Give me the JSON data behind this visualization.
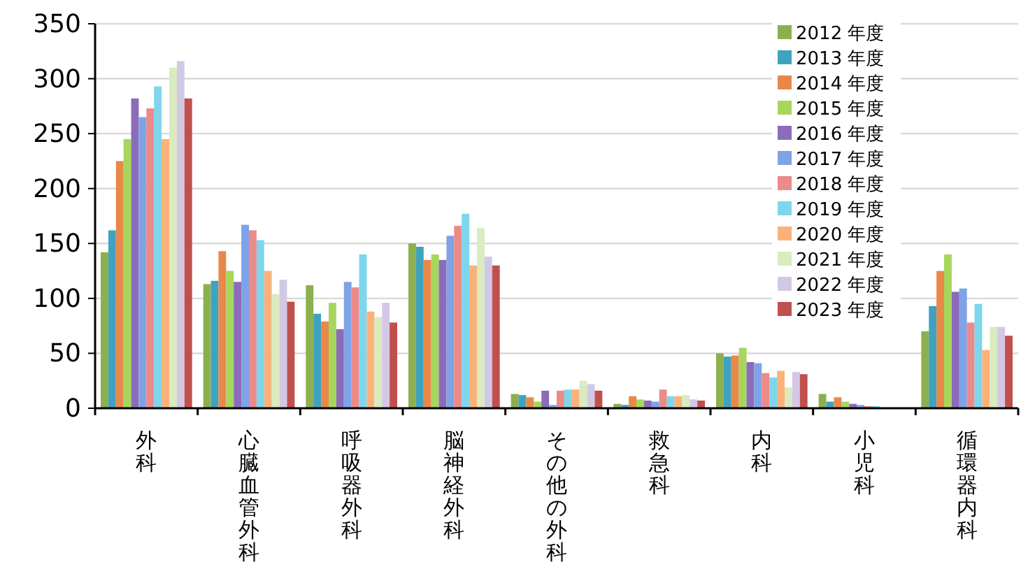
{
  "chart_data": {
    "type": "bar",
    "categories": [
      "外科",
      "心臓血管外科",
      "呼吸器外科",
      "脳神経外科",
      "その他の外科",
      "救急科",
      "内科",
      "小児科",
      "循環器内科"
    ],
    "series": [
      {
        "name": "2012 年度",
        "color": "#8db04f",
        "values": [
          142,
          113,
          112,
          150,
          13,
          4,
          50,
          13,
          70
        ]
      },
      {
        "name": "2013 年度",
        "color": "#3fa3bf",
        "values": [
          162,
          116,
          86,
          147,
          12,
          3,
          47,
          6,
          93
        ]
      },
      {
        "name": "2014 年度",
        "color": "#e8894a",
        "values": [
          225,
          143,
          79,
          135,
          10,
          11,
          48,
          10,
          125
        ]
      },
      {
        "name": "2015 年度",
        "color": "#a7d65c",
        "values": [
          245,
          125,
          96,
          140,
          6,
          8,
          55,
          6,
          140
        ]
      },
      {
        "name": "2016 年度",
        "color": "#8a6cba",
        "values": [
          282,
          115,
          72,
          135,
          16,
          7,
          42,
          4,
          106
        ]
      },
      {
        "name": "2017 年度",
        "color": "#7fa3e6",
        "values": [
          265,
          167,
          115,
          157,
          3,
          6,
          41,
          3,
          109
        ]
      },
      {
        "name": "2018 年度",
        "color": "#ec8a8a",
        "values": [
          273,
          162,
          110,
          166,
          16,
          17,
          32,
          2,
          78
        ]
      },
      {
        "name": "2019 年度",
        "color": "#7dd6ec",
        "values": [
          293,
          153,
          140,
          177,
          17,
          11,
          28,
          2,
          95
        ]
      },
      {
        "name": "2020 年度",
        "color": "#fbb27a",
        "values": [
          245,
          125,
          88,
          130,
          17,
          11,
          34,
          null,
          53
        ]
      },
      {
        "name": "2021 年度",
        "color": "#d9ebbf",
        "values": [
          310,
          104,
          83,
          164,
          25,
          12,
          19,
          null,
          74
        ]
      },
      {
        "name": "2022 年度",
        "color": "#d2c8e6",
        "values": [
          316,
          117,
          96,
          138,
          22,
          8,
          33,
          null,
          74
        ]
      },
      {
        "name": "2023 年度",
        "color": "#c0504d",
        "values": [
          282,
          97,
          78,
          130,
          16,
          7,
          31,
          0,
          66
        ]
      }
    ],
    "ylim": [
      0,
      350
    ],
    "yticks": [
      0,
      50,
      100,
      150,
      200,
      250,
      300,
      350
    ],
    "grid": "y",
    "legend": "top right"
  }
}
